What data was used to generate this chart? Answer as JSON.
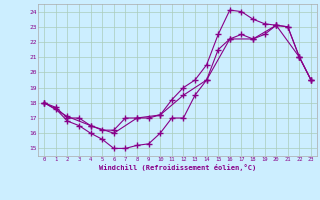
{
  "xlabel": "Windchill (Refroidissement éolien,°C)",
  "bg_color": "#cceeff",
  "grid_color": "#aaccbb",
  "line_color": "#880088",
  "xlim": [
    -0.5,
    23.5
  ],
  "ylim": [
    14.5,
    24.5
  ],
  "yticks": [
    15,
    16,
    17,
    18,
    19,
    20,
    21,
    22,
    23,
    24
  ],
  "xticks": [
    0,
    1,
    2,
    3,
    4,
    5,
    6,
    7,
    8,
    9,
    10,
    11,
    12,
    13,
    14,
    15,
    16,
    17,
    18,
    19,
    20,
    21,
    22,
    23
  ],
  "line_upper": {
    "x": [
      0,
      1,
      2,
      3,
      4,
      5,
      6,
      7,
      8,
      9,
      10,
      11,
      12,
      13,
      14,
      15,
      16,
      17,
      18,
      19,
      20,
      21,
      22,
      23
    ],
    "y": [
      18,
      17.7,
      17.0,
      17.0,
      16.5,
      16.2,
      16.2,
      17.0,
      17.0,
      17.0,
      17.2,
      18.2,
      19.0,
      19.5,
      20.5,
      22.5,
      24.1,
      24.0,
      23.5,
      23.2,
      23.1,
      23.0,
      21.0,
      19.5
    ]
  },
  "line_lower": {
    "x": [
      0,
      1,
      2,
      3,
      4,
      5,
      6,
      7,
      8,
      9,
      10,
      11,
      12,
      13,
      14,
      15,
      16,
      17,
      18,
      19,
      20,
      21,
      22,
      23
    ],
    "y": [
      18,
      17.6,
      16.8,
      16.5,
      16.0,
      15.6,
      15.0,
      15.0,
      15.2,
      15.3,
      16.0,
      17.0,
      17.0,
      18.5,
      19.5,
      21.5,
      22.2,
      22.5,
      22.2,
      22.5,
      23.1,
      23.0,
      21.0,
      19.5
    ]
  },
  "line_diag": {
    "x": [
      0,
      2,
      4,
      6,
      8,
      10,
      12,
      14,
      16,
      18,
      20,
      22,
      23
    ],
    "y": [
      18,
      17.1,
      16.5,
      16.0,
      17.0,
      17.2,
      18.5,
      19.5,
      22.2,
      22.2,
      23.1,
      21.0,
      19.5
    ]
  }
}
